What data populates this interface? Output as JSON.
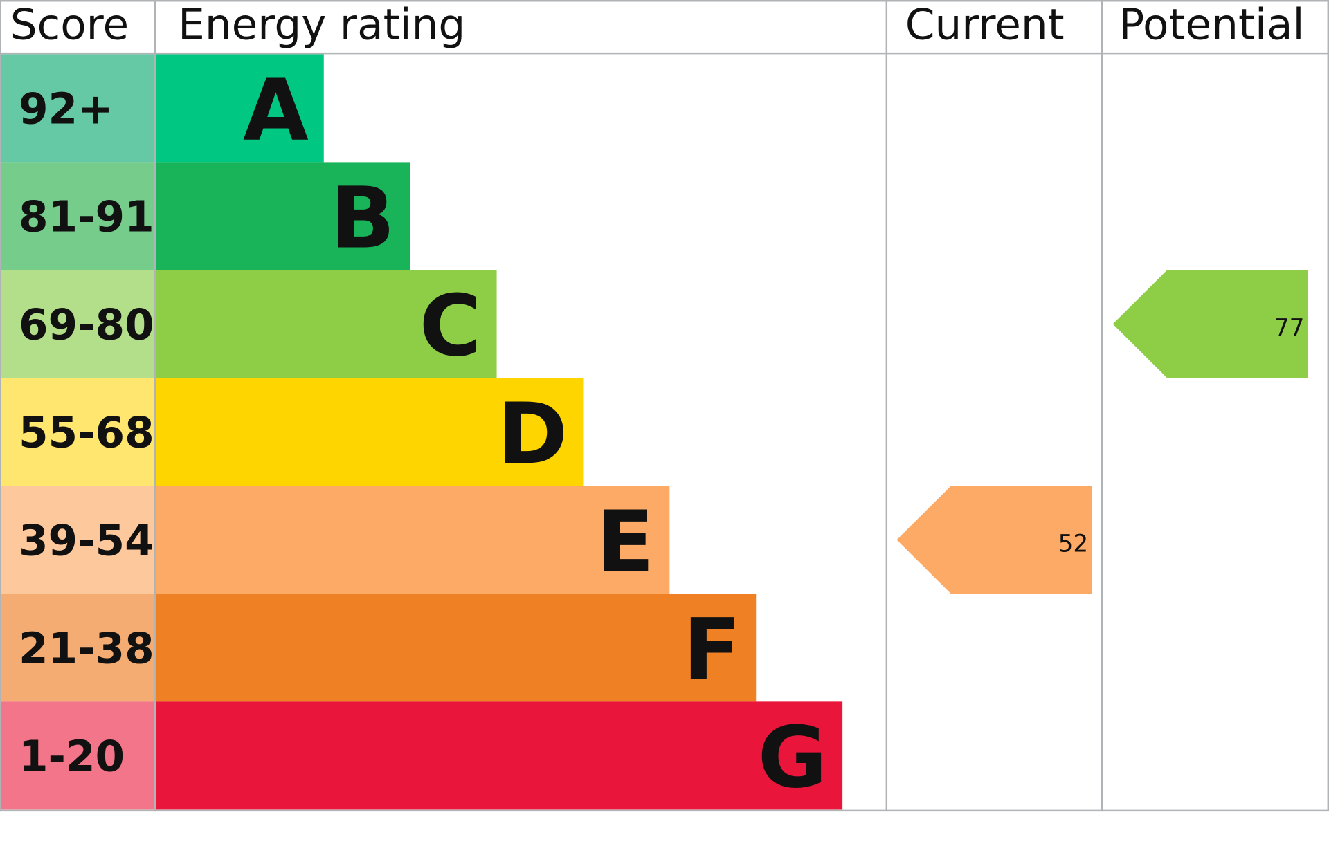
{
  "chart_data": {
    "type": "bar",
    "headers": {
      "score": "Score",
      "rating": "Energy rating",
      "current": "Current",
      "potential": "Potential"
    },
    "bands": [
      {
        "letter": "A",
        "range": "92+",
        "color": "#00c781",
        "score_color": "#64c9a4"
      },
      {
        "letter": "B",
        "range": "81-91",
        "color": "#19b459",
        "score_color": "#75cc8b"
      },
      {
        "letter": "C",
        "range": "69-80",
        "color": "#8dce46",
        "score_color": "#b3df8a"
      },
      {
        "letter": "D",
        "range": "55-68",
        "color": "#ffd500",
        "score_color": "#ffe66f"
      },
      {
        "letter": "E",
        "range": "39-54",
        "color": "#fcaa65",
        "score_color": "#fdc89c"
      },
      {
        "letter": "F",
        "range": "21-38",
        "color": "#ef8023",
        "score_color": "#f4ac73"
      },
      {
        "letter": "G",
        "range": "1-20",
        "color": "#e9153b",
        "score_color": "#f27589"
      }
    ],
    "current": {
      "value": 52,
      "band": "E"
    },
    "potential": {
      "value": 77,
      "band": "C"
    },
    "grid_color": "#b1b4b6"
  }
}
